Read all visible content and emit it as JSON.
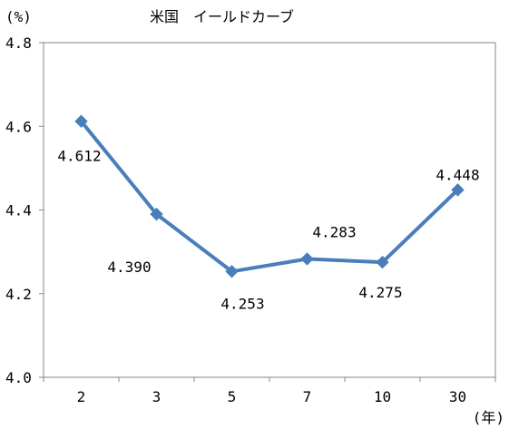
{
  "chart_data": {
    "type": "line",
    "title": "米国　イールドカーブ",
    "y_unit": "(%)",
    "x_unit": "(年)",
    "categories": [
      "2",
      "3",
      "5",
      "7",
      "10",
      "30"
    ],
    "values": [
      4.612,
      4.39,
      4.253,
      4.283,
      4.275,
      4.448
    ],
    "data_labels": [
      "4.612",
      "4.390",
      "4.253",
      "4.283",
      "4.275",
      "4.448"
    ],
    "ylim": [
      4.0,
      4.8
    ],
    "yticks": [
      "4.0",
      "4.2",
      "4.4",
      "4.6",
      "4.8"
    ],
    "grid": false,
    "legend": "none",
    "series_color": "#4a7ebb"
  }
}
